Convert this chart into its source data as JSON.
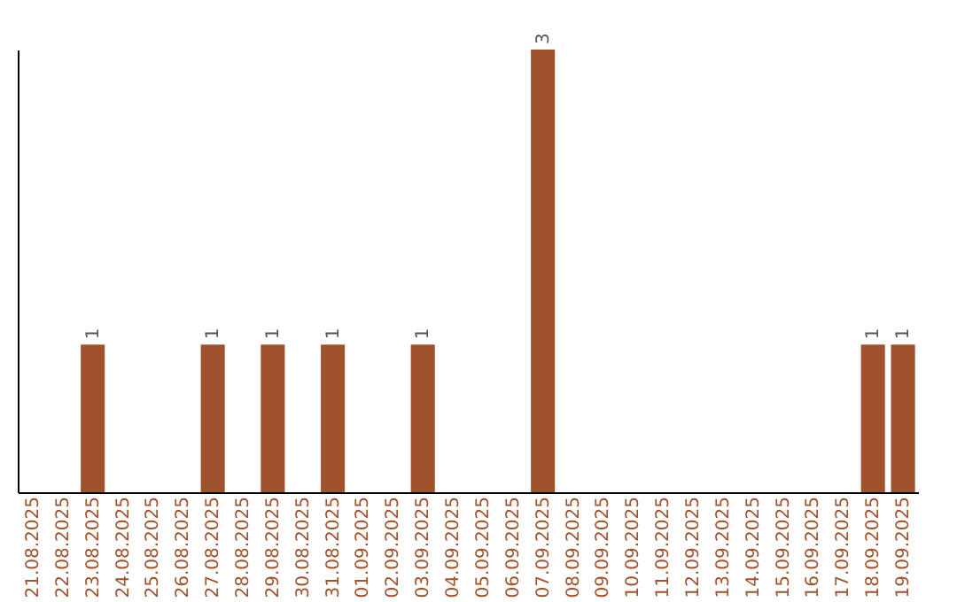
{
  "chart_data": {
    "type": "bar",
    "categories": [
      "21.08.2025",
      "22.08.2025",
      "23.08.2025",
      "24.08.2025",
      "25.08.2025",
      "26.08.2025",
      "27.08.2025",
      "28.08.2025",
      "29.08.2025",
      "30.08.2025",
      "31.08.2025",
      "01.09.2025",
      "02.09.2025",
      "03.09.2025",
      "04.09.2025",
      "05.09.2025",
      "06.09.2025",
      "07.09.2025",
      "08.09.2025",
      "09.09.2025",
      "10.09.2025",
      "11.09.2025",
      "12.09.2025",
      "13.09.2025",
      "14.09.2025",
      "15.09.2025",
      "16.09.2025",
      "17.09.2025",
      "18.09.2025",
      "19.09.2025"
    ],
    "values": [
      0,
      0,
      1,
      0,
      0,
      0,
      1,
      0,
      1,
      0,
      1,
      0,
      0,
      1,
      0,
      0,
      0,
      3,
      0,
      0,
      0,
      0,
      0,
      0,
      0,
      0,
      0,
      0,
      1,
      1
    ],
    "value_labels": [
      null,
      null,
      "1",
      null,
      null,
      null,
      "1",
      null,
      "1",
      null,
      "1",
      null,
      null,
      "1",
      null,
      null,
      null,
      "3",
      null,
      null,
      null,
      null,
      null,
      null,
      null,
      null,
      null,
      null,
      "1",
      "1"
    ],
    "color": "#a0522d",
    "tick_labels": "x"
  }
}
